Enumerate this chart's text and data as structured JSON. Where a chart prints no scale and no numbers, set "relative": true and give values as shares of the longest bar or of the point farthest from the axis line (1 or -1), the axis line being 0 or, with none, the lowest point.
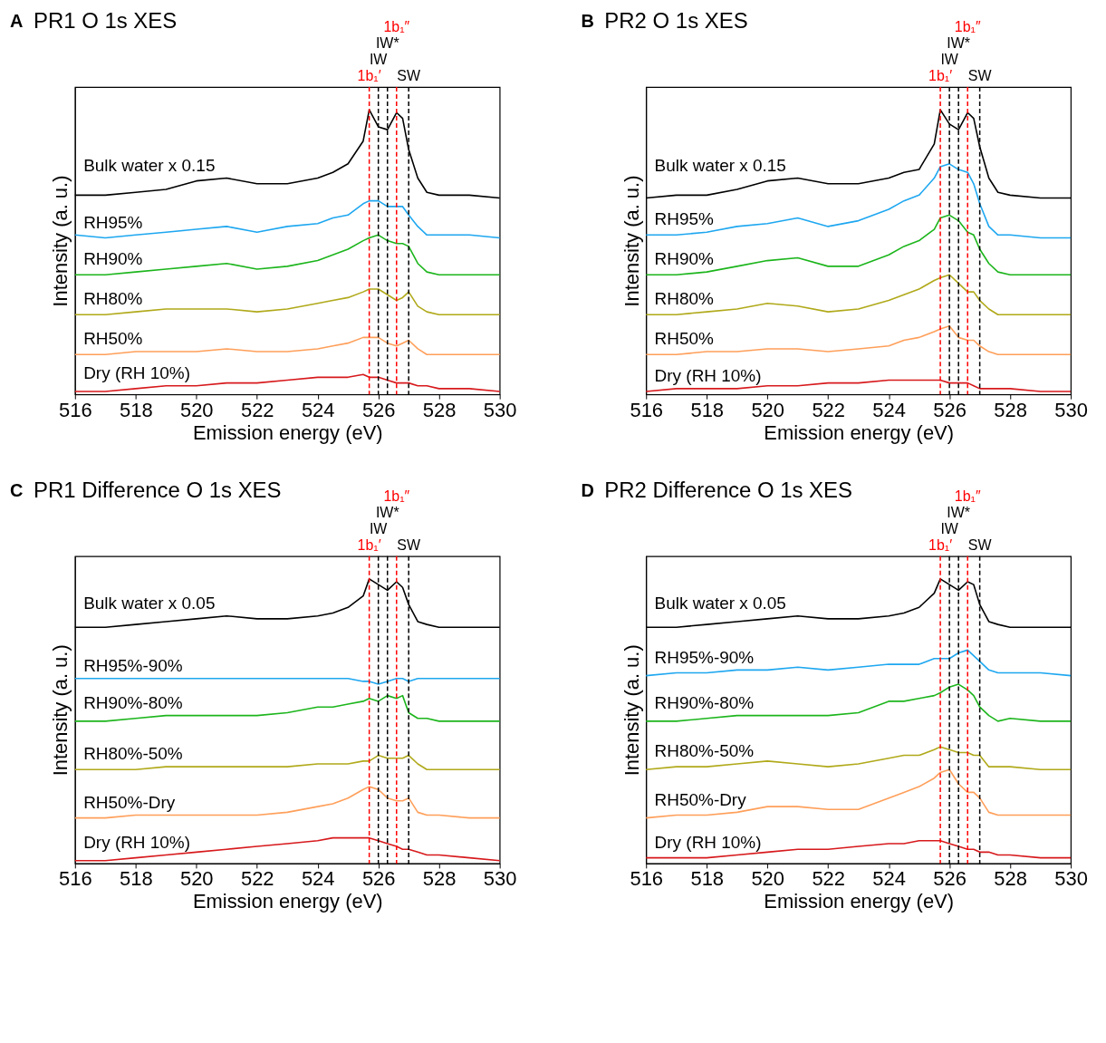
{
  "chart_data": [
    {
      "type": "line",
      "relative": true,
      "title": "PR1 O 1s XES",
      "annotations": [
        "A"
      ],
      "xlabel": "Emission energy (eV)",
      "ylabel": "Intensity (a. u.)",
      "xlim": [
        516,
        530
      ],
      "xticks": [
        516,
        518,
        520,
        522,
        524,
        526,
        528,
        530
      ],
      "grid": false,
      "legend": false,
      "x": [
        516,
        517,
        518,
        519,
        520,
        521,
        522,
        523,
        524,
        524.5,
        525,
        525.5,
        525.7,
        526,
        526.3,
        526.6,
        526.8,
        527,
        527.3,
        527.6,
        528,
        529,
        530
      ],
      "series": [
        {
          "name": "Bulk water x 0.15",
          "color": "#000000",
          "values": [
            0.7,
            0.7,
            0.71,
            0.72,
            0.75,
            0.76,
            0.74,
            0.74,
            0.76,
            0.78,
            0.81,
            0.89,
            1.0,
            0.94,
            0.93,
            0.99,
            0.97,
            0.86,
            0.76,
            0.71,
            0.7,
            0.7,
            0.69
          ]
        },
        {
          "name": "RH95%",
          "color": "#1ea7f0",
          "values": [
            0.56,
            0.55,
            0.56,
            0.57,
            0.58,
            0.59,
            0.57,
            0.59,
            0.6,
            0.62,
            0.63,
            0.67,
            0.68,
            0.68,
            0.66,
            0.66,
            0.66,
            0.63,
            0.59,
            0.56,
            0.56,
            0.56,
            0.55
          ]
        },
        {
          "name": "RH90%",
          "color": "#1cb51c",
          "values": [
            0.42,
            0.42,
            0.43,
            0.44,
            0.45,
            0.46,
            0.44,
            0.45,
            0.47,
            0.49,
            0.51,
            0.54,
            0.55,
            0.56,
            0.54,
            0.53,
            0.53,
            0.52,
            0.46,
            0.43,
            0.42,
            0.42,
            0.42
          ]
        },
        {
          "name": "RH80%",
          "color": "#b0a91a",
          "values": [
            0.28,
            0.28,
            0.29,
            0.3,
            0.3,
            0.3,
            0.29,
            0.3,
            0.32,
            0.33,
            0.34,
            0.36,
            0.37,
            0.37,
            0.35,
            0.33,
            0.34,
            0.36,
            0.31,
            0.29,
            0.28,
            0.28,
            0.28
          ]
        },
        {
          "name": "RH50%",
          "color": "#ff9f5a",
          "values": [
            0.14,
            0.14,
            0.15,
            0.15,
            0.15,
            0.16,
            0.15,
            0.15,
            0.16,
            0.17,
            0.18,
            0.2,
            0.2,
            0.2,
            0.18,
            0.17,
            0.18,
            0.19,
            0.16,
            0.14,
            0.14,
            0.14,
            0.14
          ]
        },
        {
          "name": "Dry (RH 10%)",
          "color": "#d7191c",
          "values": [
            0.01,
            0.01,
            0.02,
            0.03,
            0.03,
            0.04,
            0.04,
            0.05,
            0.06,
            0.06,
            0.06,
            0.07,
            0.06,
            0.06,
            0.05,
            0.04,
            0.04,
            0.04,
            0.03,
            0.03,
            0.02,
            0.02,
            0.01
          ]
        }
      ],
      "ref_lines": [
        {
          "axis": "x",
          "value": 525.7,
          "label": "1b₁′",
          "color": "#ff0000",
          "line_style": "dashed"
        },
        {
          "axis": "x",
          "value": 526.6,
          "label": "1b₁″",
          "color": "#ff0000",
          "line_style": "dashed"
        },
        {
          "axis": "x",
          "value": 526.0,
          "label": "IW",
          "color": "#000000",
          "line_style": "dashed"
        },
        {
          "axis": "x",
          "value": 526.3,
          "label": "IW*",
          "color": "#000000",
          "line_style": "dashed"
        },
        {
          "axis": "x",
          "value": 527.0,
          "label": "SW",
          "color": "#000000",
          "line_style": "dashed"
        }
      ]
    },
    {
      "type": "line",
      "relative": true,
      "title": "PR2 O 1s XES",
      "annotations": [
        "B"
      ],
      "xlabel": "Emission energy (eV)",
      "ylabel": "Intensity (a. u.)",
      "xlim": [
        516,
        530
      ],
      "xticks": [
        516,
        518,
        520,
        522,
        524,
        526,
        528,
        530
      ],
      "grid": false,
      "legend": false,
      "x": [
        516,
        517,
        518,
        519,
        520,
        521,
        522,
        523,
        524,
        524.5,
        525,
        525.5,
        525.7,
        526,
        526.3,
        526.6,
        526.8,
        527,
        527.3,
        527.6,
        528,
        529,
        530
      ],
      "series": [
        {
          "name": "Bulk water x 0.15",
          "color": "#000000",
          "values": [
            0.69,
            0.7,
            0.7,
            0.72,
            0.75,
            0.76,
            0.74,
            0.74,
            0.76,
            0.78,
            0.79,
            0.88,
            1.0,
            0.95,
            0.93,
            0.99,
            0.97,
            0.87,
            0.76,
            0.71,
            0.7,
            0.69,
            0.69
          ]
        },
        {
          "name": "RH95%",
          "color": "#1ea7f0",
          "values": [
            0.56,
            0.56,
            0.57,
            0.59,
            0.6,
            0.62,
            0.59,
            0.61,
            0.65,
            0.68,
            0.7,
            0.76,
            0.8,
            0.81,
            0.79,
            0.78,
            0.74,
            0.67,
            0.59,
            0.56,
            0.56,
            0.55,
            0.55
          ]
        },
        {
          "name": "RH90%",
          "color": "#1cb51c",
          "values": [
            0.42,
            0.42,
            0.43,
            0.45,
            0.47,
            0.48,
            0.45,
            0.45,
            0.49,
            0.52,
            0.54,
            0.58,
            0.62,
            0.63,
            0.61,
            0.57,
            0.56,
            0.51,
            0.46,
            0.43,
            0.42,
            0.42,
            0.42
          ]
        },
        {
          "name": "RH80%",
          "color": "#b0a91a",
          "values": [
            0.28,
            0.28,
            0.29,
            0.3,
            0.32,
            0.31,
            0.29,
            0.3,
            0.33,
            0.35,
            0.37,
            0.4,
            0.41,
            0.42,
            0.39,
            0.36,
            0.36,
            0.33,
            0.3,
            0.28,
            0.28,
            0.28,
            0.28
          ]
        },
        {
          "name": "RH50%",
          "color": "#ff9f5a",
          "values": [
            0.14,
            0.14,
            0.15,
            0.15,
            0.16,
            0.16,
            0.15,
            0.16,
            0.17,
            0.19,
            0.2,
            0.22,
            0.23,
            0.24,
            0.2,
            0.19,
            0.19,
            0.17,
            0.15,
            0.14,
            0.14,
            0.14,
            0.14
          ]
        },
        {
          "name": "Dry (RH 10%)",
          "color": "#d7191c",
          "values": [
            0.01,
            0.02,
            0.02,
            0.02,
            0.03,
            0.03,
            0.04,
            0.04,
            0.05,
            0.05,
            0.05,
            0.05,
            0.05,
            0.04,
            0.04,
            0.04,
            0.03,
            0.02,
            0.02,
            0.02,
            0.02,
            0.01,
            0.01
          ]
        }
      ],
      "ref_lines": [
        {
          "axis": "x",
          "value": 525.7,
          "label": "1b₁′",
          "color": "#ff0000",
          "line_style": "dashed"
        },
        {
          "axis": "x",
          "value": 526.6,
          "label": "1b₁″",
          "color": "#ff0000",
          "line_style": "dashed"
        },
        {
          "axis": "x",
          "value": 526.0,
          "label": "IW",
          "color": "#000000",
          "line_style": "dashed"
        },
        {
          "axis": "x",
          "value": 526.3,
          "label": "IW*",
          "color": "#000000",
          "line_style": "dashed"
        },
        {
          "axis": "x",
          "value": 527.0,
          "label": "SW",
          "color": "#000000",
          "line_style": "dashed"
        }
      ]
    },
    {
      "type": "line",
      "relative": true,
      "title": "PR1 Difference O 1s XES",
      "annotations": [
        "C"
      ],
      "xlabel": "Emission energy (eV)",
      "ylabel": "Intensity (a. u.)",
      "xlim": [
        516,
        530
      ],
      "xticks": [
        516,
        518,
        520,
        522,
        524,
        526,
        528,
        530
      ],
      "grid": false,
      "legend": false,
      "x": [
        516,
        517,
        518,
        519,
        520,
        521,
        522,
        523,
        524,
        524.5,
        525,
        525.5,
        525.7,
        526,
        526.3,
        526.6,
        526.8,
        527,
        527.3,
        527.6,
        528,
        529,
        530
      ],
      "series": [
        {
          "name": "Bulk water x 0.05",
          "color": "#000000",
          "values": [
            0.83,
            0.83,
            0.84,
            0.85,
            0.86,
            0.87,
            0.86,
            0.86,
            0.87,
            0.88,
            0.9,
            0.94,
            1.0,
            0.98,
            0.96,
            0.99,
            0.97,
            0.91,
            0.85,
            0.84,
            0.83,
            0.83,
            0.83
          ]
        },
        {
          "name": "RH95%-90%",
          "color": "#1ea7f0",
          "values": [
            0.65,
            0.65,
            0.65,
            0.65,
            0.65,
            0.65,
            0.65,
            0.65,
            0.65,
            0.65,
            0.65,
            0.64,
            0.64,
            0.63,
            0.64,
            0.65,
            0.65,
            0.64,
            0.65,
            0.65,
            0.65,
            0.65,
            0.65
          ]
        },
        {
          "name": "RH90%-80%",
          "color": "#1cb51c",
          "values": [
            0.5,
            0.5,
            0.51,
            0.52,
            0.52,
            0.52,
            0.52,
            0.53,
            0.55,
            0.55,
            0.56,
            0.57,
            0.58,
            0.57,
            0.59,
            0.58,
            0.59,
            0.53,
            0.51,
            0.51,
            0.5,
            0.5,
            0.5
          ]
        },
        {
          "name": "RH80%-50%",
          "color": "#b0a91a",
          "values": [
            0.33,
            0.33,
            0.33,
            0.34,
            0.34,
            0.34,
            0.34,
            0.34,
            0.35,
            0.35,
            0.35,
            0.36,
            0.36,
            0.38,
            0.37,
            0.37,
            0.37,
            0.38,
            0.35,
            0.33,
            0.33,
            0.33,
            0.33
          ]
        },
        {
          "name": "RH50%-Dry",
          "color": "#ff9f5a",
          "values": [
            0.16,
            0.16,
            0.17,
            0.17,
            0.17,
            0.17,
            0.17,
            0.18,
            0.2,
            0.21,
            0.23,
            0.26,
            0.27,
            0.26,
            0.23,
            0.22,
            0.22,
            0.23,
            0.18,
            0.17,
            0.17,
            0.16,
            0.16
          ]
        },
        {
          "name": "Dry (RH 10%)",
          "color": "#d7191c",
          "values": [
            0.01,
            0.01,
            0.02,
            0.03,
            0.04,
            0.05,
            0.06,
            0.07,
            0.08,
            0.09,
            0.09,
            0.09,
            0.09,
            0.08,
            0.07,
            0.06,
            0.05,
            0.05,
            0.04,
            0.03,
            0.03,
            0.02,
            0.01
          ]
        }
      ],
      "ref_lines": [
        {
          "axis": "x",
          "value": 525.7,
          "label": "1b₁′",
          "color": "#ff0000",
          "line_style": "dashed"
        },
        {
          "axis": "x",
          "value": 526.6,
          "label": "1b₁″",
          "color": "#ff0000",
          "line_style": "dashed"
        },
        {
          "axis": "x",
          "value": 526.0,
          "label": "IW",
          "color": "#000000",
          "line_style": "dashed"
        },
        {
          "axis": "x",
          "value": 526.3,
          "label": "IW*",
          "color": "#000000",
          "line_style": "dashed"
        },
        {
          "axis": "x",
          "value": 527.0,
          "label": "SW",
          "color": "#000000",
          "line_style": "dashed"
        }
      ]
    },
    {
      "type": "line",
      "relative": true,
      "title": "PR2 Difference O 1s XES",
      "annotations": [
        "D"
      ],
      "xlabel": "Emission energy (eV)",
      "ylabel": "Intensity (a. u.)",
      "xlim": [
        516,
        530
      ],
      "xticks": [
        516,
        518,
        520,
        522,
        524,
        526,
        528,
        530
      ],
      "grid": false,
      "legend": false,
      "x": [
        516,
        517,
        518,
        519,
        520,
        521,
        522,
        523,
        524,
        524.5,
        525,
        525.5,
        525.7,
        526,
        526.3,
        526.6,
        526.8,
        527,
        527.3,
        527.6,
        528,
        529,
        530
      ],
      "series": [
        {
          "name": "Bulk water x 0.05",
          "color": "#000000",
          "values": [
            0.83,
            0.83,
            0.84,
            0.85,
            0.86,
            0.87,
            0.86,
            0.86,
            0.87,
            0.88,
            0.9,
            0.95,
            1.0,
            0.98,
            0.96,
            0.99,
            0.98,
            0.91,
            0.85,
            0.84,
            0.83,
            0.83,
            0.83
          ]
        },
        {
          "name": "RH95%-90%",
          "color": "#1ea7f0",
          "values": [
            0.66,
            0.67,
            0.67,
            0.68,
            0.68,
            0.69,
            0.68,
            0.69,
            0.7,
            0.7,
            0.7,
            0.72,
            0.72,
            0.72,
            0.74,
            0.75,
            0.73,
            0.71,
            0.68,
            0.67,
            0.67,
            0.67,
            0.66
          ]
        },
        {
          "name": "RH90%-80%",
          "color": "#1cb51c",
          "values": [
            0.5,
            0.5,
            0.51,
            0.52,
            0.52,
            0.52,
            0.52,
            0.53,
            0.57,
            0.57,
            0.58,
            0.59,
            0.6,
            0.62,
            0.63,
            0.61,
            0.59,
            0.55,
            0.52,
            0.5,
            0.51,
            0.5,
            0.5
          ]
        },
        {
          "name": "RH80%-50%",
          "color": "#b0a91a",
          "values": [
            0.33,
            0.34,
            0.34,
            0.35,
            0.36,
            0.35,
            0.34,
            0.35,
            0.37,
            0.38,
            0.38,
            0.4,
            0.41,
            0.4,
            0.39,
            0.39,
            0.38,
            0.38,
            0.34,
            0.34,
            0.34,
            0.33,
            0.33
          ]
        },
        {
          "name": "RH50%-Dry",
          "color": "#ff9f5a",
          "values": [
            0.16,
            0.17,
            0.17,
            0.18,
            0.2,
            0.2,
            0.19,
            0.19,
            0.23,
            0.25,
            0.27,
            0.3,
            0.32,
            0.33,
            0.28,
            0.25,
            0.25,
            0.23,
            0.18,
            0.17,
            0.17,
            0.17,
            0.17
          ]
        },
        {
          "name": "Dry (RH 10%)",
          "color": "#d7191c",
          "values": [
            0.02,
            0.02,
            0.02,
            0.03,
            0.04,
            0.05,
            0.05,
            0.06,
            0.07,
            0.07,
            0.08,
            0.08,
            0.08,
            0.07,
            0.06,
            0.05,
            0.05,
            0.04,
            0.04,
            0.03,
            0.03,
            0.02,
            0.02
          ]
        }
      ],
      "ref_lines": [
        {
          "axis": "x",
          "value": 525.7,
          "label": "1b₁′",
          "color": "#ff0000",
          "line_style": "dashed"
        },
        {
          "axis": "x",
          "value": 526.6,
          "label": "1b₁″",
          "color": "#ff0000",
          "line_style": "dashed"
        },
        {
          "axis": "x",
          "value": 526.0,
          "label": "IW",
          "color": "#000000",
          "line_style": "dashed"
        },
        {
          "axis": "x",
          "value": 526.3,
          "label": "IW*",
          "color": "#000000",
          "line_style": "dashed"
        },
        {
          "axis": "x",
          "value": 527.0,
          "label": "SW",
          "color": "#000000",
          "line_style": "dashed"
        }
      ]
    }
  ]
}
